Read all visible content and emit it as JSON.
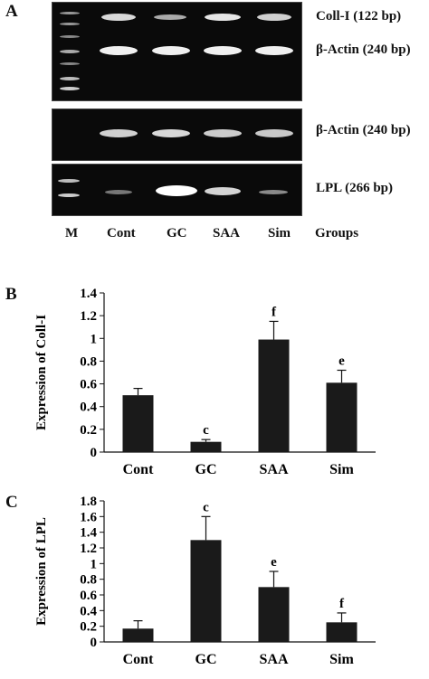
{
  "panels": {
    "a": "A",
    "b": "B",
    "c": "C"
  },
  "gel": {
    "lanes": [
      "M",
      "Cont",
      "GC",
      "SAA",
      "Sim",
      "Groups"
    ],
    "labels": {
      "coll": "Coll-I (122 bp)",
      "actin1": "β-Actin (240 bp)",
      "actin2": "β-Actin (240 bp)",
      "lpl": "LPL (266 bp)"
    }
  },
  "chart_data": [
    {
      "type": "bar",
      "panel": "B",
      "categories": [
        "Cont",
        "GC",
        "SAA",
        "Sim"
      ],
      "values": [
        0.5,
        0.09,
        0.99,
        0.61
      ],
      "errors": [
        0.06,
        0.02,
        0.16,
        0.11
      ],
      "annotations": [
        "",
        "c",
        "f",
        "e"
      ],
      "ylabel": "Expression of Coll-I",
      "ylim": [
        0,
        1.4
      ],
      "yticks": [
        "0",
        "0.2",
        "0.4",
        "0.6",
        "0.8",
        "1",
        "1.2",
        "1.4"
      ],
      "grid": false,
      "bar_color": "#1a1a1a"
    },
    {
      "type": "bar",
      "panel": "C",
      "categories": [
        "Cont",
        "GC",
        "SAA",
        "Sim"
      ],
      "values": [
        0.17,
        1.3,
        0.7,
        0.25
      ],
      "errors": [
        0.1,
        0.3,
        0.2,
        0.12
      ],
      "annotations": [
        "",
        "c",
        "e",
        "f"
      ],
      "ylabel": "Expression of LPL",
      "ylim": [
        0,
        1.8
      ],
      "yticks": [
        "0",
        "0.2",
        "0.4",
        "0.6",
        "0.8",
        "1",
        "1.2",
        "1.4",
        "1.6",
        "1.8"
      ],
      "grid": false,
      "bar_color": "#1a1a1a"
    }
  ]
}
